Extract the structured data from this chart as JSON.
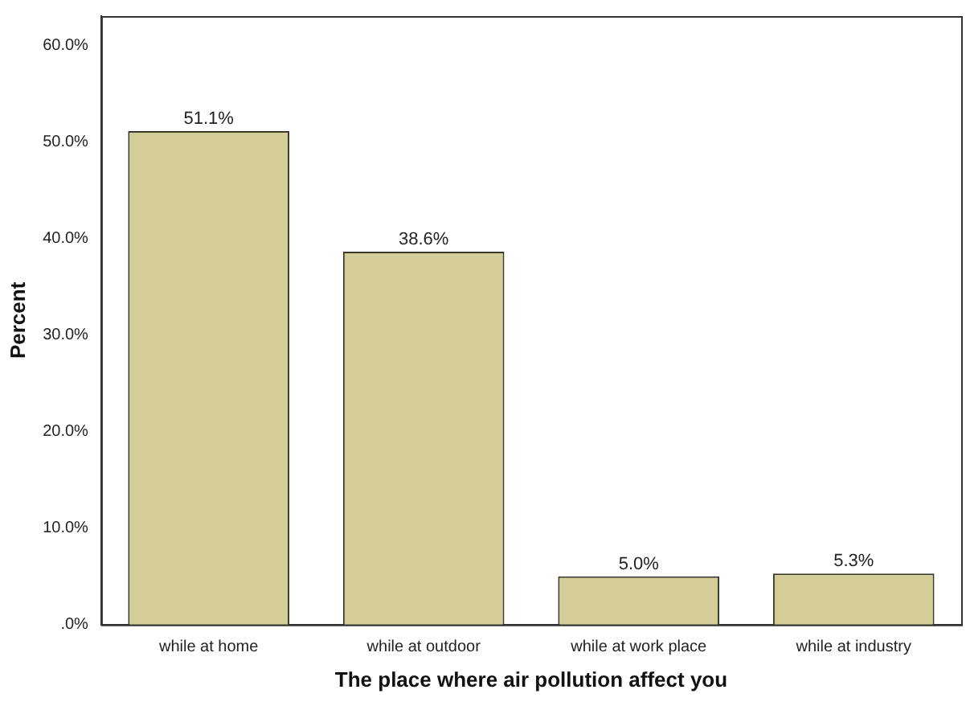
{
  "chart_data": {
    "type": "bar",
    "xlabel": "The place where air pollution affect you",
    "ylabel": "Percent",
    "categories": [
      "while at home",
      "while at outdoor",
      "while at work place",
      "while at industry"
    ],
    "values": [
      51.1,
      38.6,
      5.0,
      5.3
    ],
    "value_labels": [
      "51.1%",
      "38.6%",
      "5.0%",
      "5.3%"
    ],
    "color": "#d3ce97",
    "ylim": [
      0,
      63
    ],
    "yticks": [
      {
        "value": 0,
        "label": ".0%"
      },
      {
        "value": 10,
        "label": "10.0%"
      },
      {
        "value": 20,
        "label": "20.0%"
      },
      {
        "value": 30,
        "label": "30.0%"
      },
      {
        "value": 40,
        "label": "40.0%"
      },
      {
        "value": 50,
        "label": "50.0%"
      },
      {
        "value": 60,
        "label": "60.0%"
      }
    ],
    "grid": false,
    "legend": false
  }
}
